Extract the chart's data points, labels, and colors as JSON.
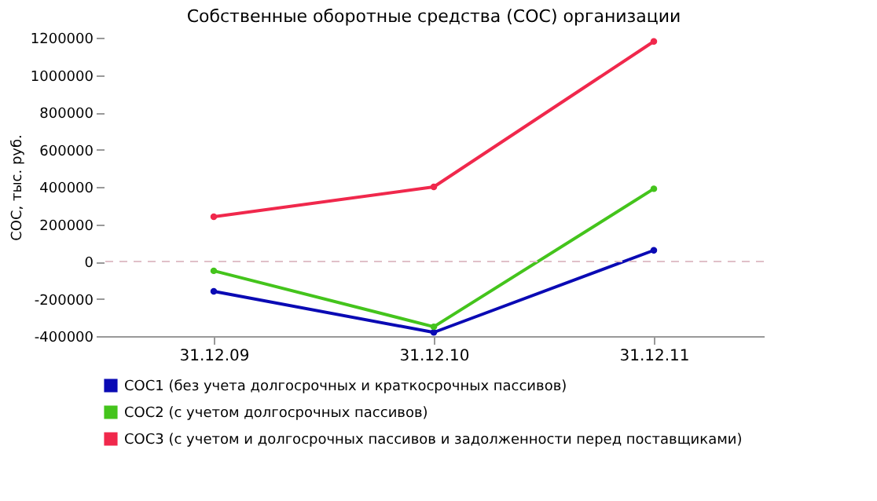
{
  "chart_data": {
    "type": "line",
    "title": "Собственные оборотные средства (СОС) организации",
    "ylabel": "СОС, тыс. руб.",
    "categories": [
      "31.12.09",
      "31.12.10",
      "31.12.11"
    ],
    "series": [
      {
        "name": "СОС1 (без учета долгосрочных и краткосрочных пассивов)",
        "color": "#0a0ab4",
        "values": [
          -160000,
          -380000,
          60000
        ]
      },
      {
        "name": "СОС2 (с учетом долгосрочных пассивов)",
        "color": "#44c41c",
        "values": [
          -50000,
          -350000,
          390000
        ]
      },
      {
        "name": "СОС3 (с учетом и долгосрочных пассивов и задолженности перед поставщиками)",
        "color": "#f0284c",
        "values": [
          240000,
          400000,
          1180000
        ]
      }
    ],
    "ylim": [
      -400000,
      1200000
    ],
    "yticks": [
      -400000,
      -200000,
      0,
      200000,
      400000,
      600000,
      800000,
      1000000,
      1200000
    ],
    "ref_lines": [
      {
        "axis": "y",
        "value": 0,
        "color": "#e0c0c8",
        "line_style": "dashed"
      }
    ],
    "marker": "circle",
    "line_style": "solid",
    "legend": "bottom left",
    "grid": false
  }
}
